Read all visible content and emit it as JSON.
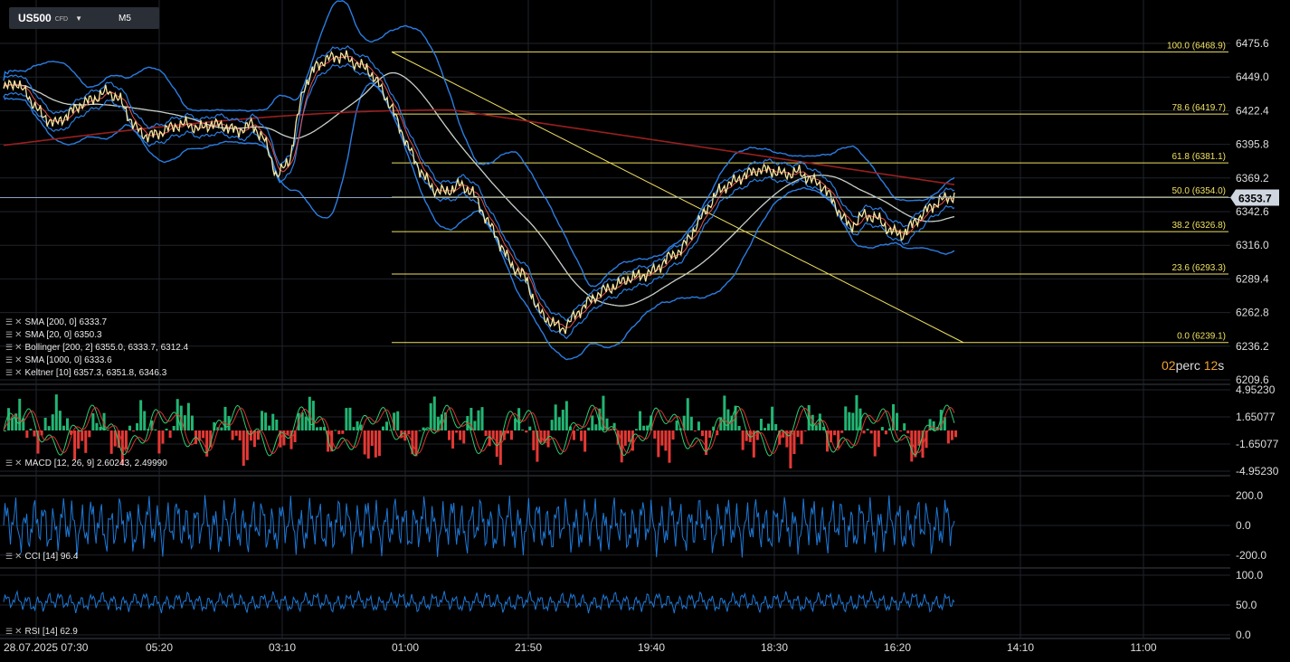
{
  "toolbar": {
    "symbol": "US500",
    "symbol_tag": "CFD",
    "timeframe": "M5"
  },
  "timer": {
    "value1": "02",
    "unit1": "perc",
    "value2": "12",
    "unit2": "s"
  },
  "indicators": {
    "sma200": "SMA [200, 0] 6333.7",
    "sma20": "SMA [20, 0] 6350.3",
    "bollinger": "Bollinger [200, 2] 6355.0, 6333.7, 6312.4",
    "sma1000": "SMA [1000, 0] 6333.6",
    "keltner": "Keltner [10] 6357.3, 6351.8, 6346.3",
    "macd": "MACD [12, 26, 9] 2.60243, 2.49990",
    "cci": "CCI [14] 96.4",
    "rsi": "RSI [14] 62.9"
  },
  "chart_data": [
    {
      "type": "line",
      "title": "US500 M5",
      "y_ticks": [
        "6475.6",
        "6449.0",
        "6422.4",
        "6395.8",
        "6369.2",
        "6342.6",
        "6316.0",
        "6289.4",
        "6262.8",
        "6236.2",
        "6209.6"
      ],
      "ylim": [
        6209.6,
        6475.6
      ],
      "x_ticks": [
        "28.07.2025  07:30",
        "05:20",
        "03:10",
        "01:00",
        "21:50",
        "19:40",
        "18:30",
        "16:20",
        "14:10",
        "11:00"
      ],
      "last_price": "6353.7",
      "fibonacci": [
        {
          "label": "100.0 (6468.9)",
          "value": 6468.9
        },
        {
          "label": "78.6 (6419.7)",
          "value": 6419.7
        },
        {
          "label": "61.8 (6381.1)",
          "value": 6381.1
        },
        {
          "label": "50.0 (6354.0)",
          "value": 6354.0
        },
        {
          "label": "38.2 (6326.8)",
          "value": 6326.8
        },
        {
          "label": "23.6 (6293.3)",
          "value": 6293.3
        },
        {
          "label": "0.0 (6239.1)",
          "value": 6239.1
        }
      ],
      "price_path": [
        6440,
        6445,
        6432,
        6418,
        6412,
        6420,
        6428,
        6432,
        6438,
        6430,
        6410,
        6402,
        6405,
        6410,
        6412,
        6408,
        6412,
        6410,
        6406,
        6412,
        6400,
        6370,
        6385,
        6440,
        6458,
        6464,
        6466,
        6460,
        6455,
        6440,
        6420,
        6395,
        6375,
        6360,
        6358,
        6364,
        6358,
        6338,
        6320,
        6300,
        6292,
        6265,
        6255,
        6250,
        6262,
        6272,
        6280,
        6284,
        6290,
        6292,
        6296,
        6306,
        6312,
        6328,
        6345,
        6360,
        6366,
        6372,
        6376,
        6375,
        6372,
        6374,
        6368,
        6362,
        6345,
        6330,
        6340,
        6338,
        6328,
        6324,
        6335,
        6345,
        6352,
        6355
      ]
    },
    {
      "type": "bar",
      "title": "MACD",
      "y_ticks": [
        "4.95230",
        "1.65077",
        "-1.65077",
        "-4.95230"
      ],
      "ylim": [
        -4.9523,
        4.9523
      ]
    },
    {
      "type": "line",
      "title": "CCI",
      "y_ticks": [
        "200.0",
        "0.0",
        "-200.0"
      ],
      "ylim": [
        -250,
        250
      ]
    },
    {
      "type": "line",
      "title": "RSI",
      "y_ticks": [
        "100.0",
        "50.0",
        "0.0"
      ],
      "ylim": [
        0,
        100
      ]
    }
  ],
  "colors": {
    "background": "#000000",
    "grid": "#1f242b",
    "candles": "#f5e6a0",
    "bollinger": "#2a7de1",
    "sma200": "#9a1f1f",
    "sma1000": "#c8d0c8",
    "fib": "#f0e060",
    "macd_pos": "#22b573",
    "macd_neg": "#e53935",
    "osc": "#1e78d6"
  }
}
